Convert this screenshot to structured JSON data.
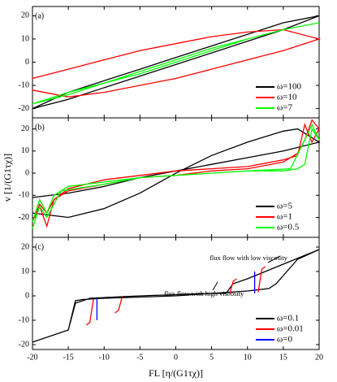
{
  "chart_data": [
    {
      "type": "line",
      "panel_label": "(a)",
      "xlim": [
        -20,
        20
      ],
      "xticks": [
        -20,
        -15,
        -10,
        -5,
        0,
        5,
        10,
        15,
        20
      ],
      "xtick_labels": false,
      "ylim": [
        -24,
        24
      ],
      "yticks": [
        -20,
        -10,
        0,
        10,
        20
      ],
      "legend": "lower right",
      "series": [
        {
          "name": "ω=100",
          "color": "#000000",
          "x": [
            -20,
            -15,
            -10,
            -5,
            0,
            5,
            10,
            15,
            20,
            15,
            10,
            5,
            0,
            -5,
            -10,
            -15,
            -20
          ],
          "values": [
            -20,
            -16,
            -11,
            -6,
            -1,
            4,
            9,
            14,
            20,
            17,
            12,
            7,
            2,
            -3,
            -8,
            -13,
            -20
          ]
        },
        {
          "name": "ω=10",
          "color": "#ff0000",
          "x": [
            -20,
            -15,
            -10,
            -5,
            0,
            5,
            10,
            15,
            20,
            15,
            10,
            5,
            0,
            -5,
            -10,
            -15,
            -20
          ],
          "values": [
            -7,
            -3,
            1,
            5,
            8,
            11,
            13,
            14,
            10,
            5,
            1,
            -3,
            -7,
            -10,
            -13,
            -15,
            -12
          ]
        },
        {
          "name": "ω=7",
          "color": "#00ff00",
          "x": [
            -20,
            -15,
            -10,
            -5,
            0,
            5,
            10,
            15,
            20,
            15,
            10,
            5,
            0,
            -5,
            -10,
            -15,
            -20
          ],
          "values": [
            -18,
            -14,
            -9,
            -4,
            1,
            6,
            10,
            14,
            17,
            14,
            10,
            5,
            0,
            -5,
            -9,
            -13,
            -18
          ]
        }
      ]
    },
    {
      "type": "line",
      "panel_label": "(b)",
      "xlim": [
        -20,
        20
      ],
      "xticks": [
        -20,
        -15,
        -10,
        -5,
        0,
        5,
        10,
        15,
        20
      ],
      "xtick_labels": false,
      "ylim": [
        -29,
        25
      ],
      "yticks": [
        -20,
        -10,
        0,
        10,
        20
      ],
      "ylabel": "v [1/(G1τχ)]",
      "legend": "lower right",
      "series": [
        {
          "name": "ω=5",
          "color": "#000000",
          "x": [
            -20,
            -15,
            -10,
            -5,
            0,
            5,
            10,
            15,
            17,
            20,
            15,
            10,
            5,
            0,
            -5,
            -10,
            -15,
            -20
          ],
          "values": [
            -18,
            -20,
            -16,
            -9,
            0,
            8,
            14,
            19,
            20,
            14,
            10,
            7,
            4,
            1,
            -2,
            -6,
            -9,
            -11
          ]
        },
        {
          "name": "ω=1",
          "color": "#ff0000",
          "x": [
            -20,
            -19,
            -18,
            -17,
            -15,
            -10,
            -5,
            0,
            5,
            10,
            15,
            17,
            18,
            19,
            20,
            19,
            18,
            17,
            15,
            10,
            5,
            0,
            -5,
            -10,
            -15,
            -17,
            -18,
            -19,
            -20
          ],
          "values": [
            -22,
            -15,
            -24,
            -12,
            -8,
            -5,
            -2,
            -1,
            1,
            2,
            5,
            9,
            15,
            24,
            20,
            14,
            22,
            8,
            6,
            3,
            2,
            1,
            -1,
            -3,
            -7,
            -12,
            -18,
            -14,
            -22
          ]
        },
        {
          "name": "ω=0.5",
          "color": "#00ff00",
          "x": [
            -20,
            -19,
            -18,
            -16,
            -10,
            -5,
            0,
            5,
            10,
            15,
            17,
            18,
            19,
            20,
            19,
            18,
            16,
            10,
            5,
            0,
            -5,
            -10,
            -15,
            -17,
            -18,
            -19,
            -20
          ],
          "values": [
            -25,
            -15,
            -20,
            -8,
            -5,
            -2,
            -1,
            0,
            1,
            1,
            2,
            4,
            20,
            15,
            22,
            15,
            2,
            1,
            0,
            -1,
            -2,
            -4,
            -6,
            -10,
            -18,
            -12,
            -22
          ]
        }
      ]
    },
    {
      "type": "line",
      "panel_label": "(c)",
      "xlim": [
        -20,
        20
      ],
      "xticks": [
        -20,
        -15,
        -10,
        -5,
        0,
        5,
        10,
        15,
        20
      ],
      "xtick_labels": true,
      "ylim": [
        -22,
        24
      ],
      "yticks": [
        -20,
        -10,
        0,
        10,
        20
      ],
      "xlabel": "FL [η/(G1τχ)]",
      "legend": "lower right",
      "annotations": [
        "flux flow with low viscosity",
        "flux flow with high viscosity"
      ],
      "series": [
        {
          "name": "ω=0.1",
          "color": "#000000",
          "x": [
            -20,
            -15,
            -14,
            -12,
            -5,
            0,
            5,
            10,
            13,
            14,
            17,
            20,
            null,
            20,
            15,
            10,
            8,
            7,
            5,
            0,
            -5,
            -10,
            -13,
            -14,
            -15,
            -20
          ],
          "values": [
            -19,
            -14,
            -3,
            -1,
            0,
            0.5,
            1,
            2,
            3,
            5,
            15,
            19,
            null,
            19,
            13,
            7,
            5,
            1,
            1,
            0,
            -0.5,
            -1,
            -1.5,
            -2,
            -14,
            -19
          ]
        },
        {
          "name": "ω=0.01",
          "color": "#ff0000",
          "x": [
            -12.5,
            -12,
            -11.5,
            null,
            -8.5,
            -8,
            -7.5,
            null,
            7.5,
            8,
            8.5,
            null,
            11.5,
            12,
            12.5
          ],
          "values": [
            -12,
            -11,
            -1.5,
            null,
            -7,
            -6,
            -0.5,
            null,
            0.5,
            6,
            7,
            null,
            1.5,
            11,
            12
          ]
        },
        {
          "name": "ω=0",
          "color": "#0000ff",
          "x": [
            -11,
            -11,
            null,
            11,
            11
          ],
          "values": [
            -10,
            -1,
            null,
            1,
            10
          ]
        }
      ]
    }
  ]
}
